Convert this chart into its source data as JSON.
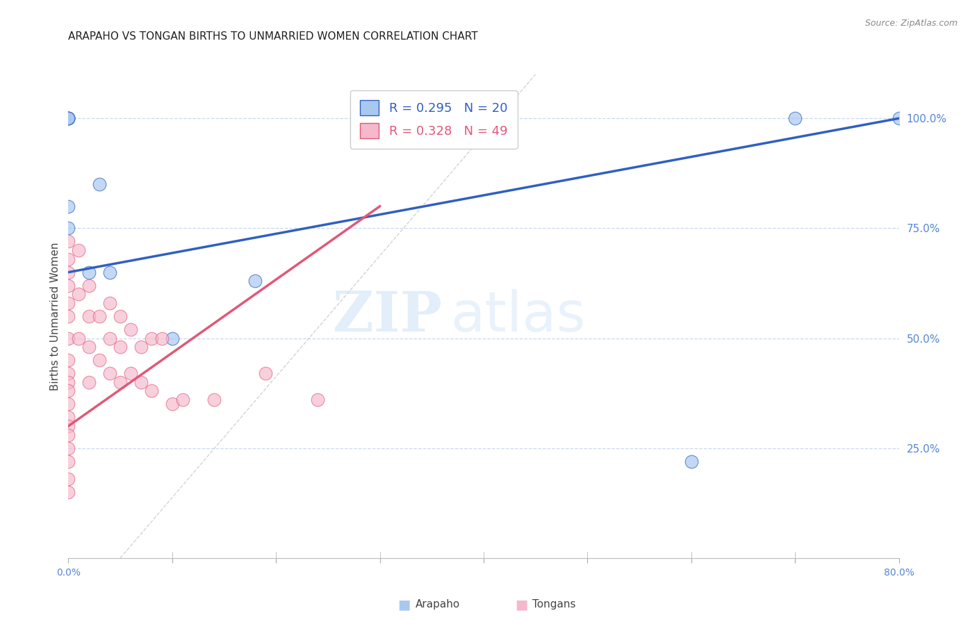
{
  "title": "ARAPAHO VS TONGAN BIRTHS TO UNMARRIED WOMEN CORRELATION CHART",
  "source": "Source: ZipAtlas.com",
  "ylabel": "Births to Unmarried Women",
  "x_tick_labels": [
    "0.0%",
    "",
    "",
    "",
    "",
    "",
    "",
    "",
    "80.0%"
  ],
  "x_tick_values": [
    0,
    10,
    20,
    30,
    40,
    50,
    60,
    70,
    80
  ],
  "y_tick_labels": [
    "25.0%",
    "50.0%",
    "75.0%",
    "100.0%"
  ],
  "y_tick_values": [
    25,
    50,
    75,
    100
  ],
  "xlim": [
    0,
    80
  ],
  "ylim": [
    0,
    110
  ],
  "arapaho_x": [
    0,
    0,
    0,
    0,
    0,
    0,
    0,
    2,
    3,
    4,
    10,
    18,
    60,
    70,
    80
  ],
  "arapaho_y": [
    100,
    100,
    100,
    100,
    100,
    80,
    75,
    65,
    85,
    65,
    50,
    63,
    22,
    100,
    100
  ],
  "tongan_x": [
    0,
    0,
    0,
    0,
    0,
    0,
    0,
    0,
    0,
    0,
    0,
    0,
    0,
    0,
    0,
    0,
    0,
    0,
    0,
    1,
    1,
    1,
    2,
    2,
    2,
    2,
    3,
    3,
    4,
    4,
    4,
    5,
    5,
    5,
    6,
    6,
    7,
    7,
    8,
    8,
    9,
    10,
    11,
    14,
    19,
    24
  ],
  "tongan_y": [
    72,
    68,
    65,
    62,
    58,
    55,
    50,
    45,
    42,
    40,
    38,
    35,
    32,
    30,
    28,
    25,
    22,
    18,
    15,
    70,
    60,
    50,
    62,
    55,
    48,
    40,
    55,
    45,
    58,
    50,
    42,
    55,
    48,
    40,
    52,
    42,
    48,
    40,
    50,
    38,
    50,
    35,
    36,
    36,
    42,
    36
  ],
  "arapaho_color": "#a8c8f0",
  "tongan_color": "#f5b8cc",
  "arapaho_line_color": "#3060c0",
  "tongan_line_color": "#e05878",
  "legend_arapaho_R": "R = 0.295",
  "legend_arapaho_N": "N = 20",
  "legend_tongan_R": "R = 0.328",
  "legend_tongan_N": "N = 49",
  "watermark_zip": "ZIP",
  "watermark_atlas": "atlas",
  "background_color": "#ffffff",
  "grid_color": "#c8d8ee",
  "title_fontsize": 11,
  "tick_label_color": "#5585d5",
  "arapaho_trend_x0": 0,
  "arapaho_trend_y0": 65,
  "arapaho_trend_x1": 80,
  "arapaho_trend_y1": 100,
  "tongan_trend_x0": 0,
  "tongan_trend_y0": 30,
  "tongan_trend_x1": 30,
  "tongan_trend_y1": 80
}
